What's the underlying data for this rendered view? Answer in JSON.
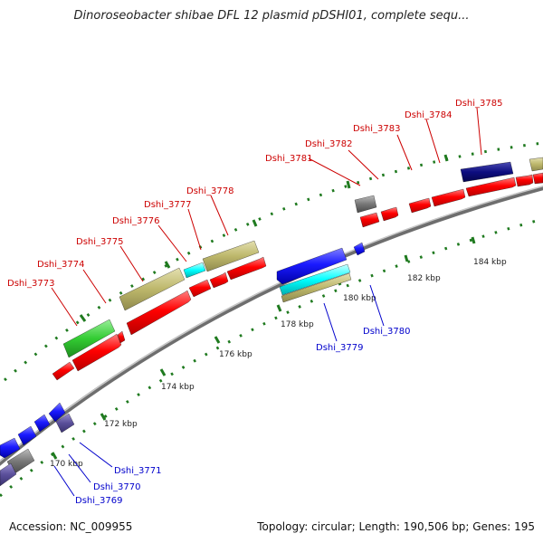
{
  "title": "Dinoroseobacter shibae DFL 12 plasmid pDSHI01, complete sequ...",
  "footer": {
    "accession_label": "Accession:",
    "accession": "NC_009955",
    "topology_label": "Topology:",
    "topology": "circular",
    "length_label": "Length:",
    "length": "190,506 bp",
    "genes_label": "Genes:",
    "genes": "195"
  },
  "colors": {
    "forward_cds": "#ff0000",
    "reverse_cds": "#1a1aff",
    "khaki": "#bdb76b",
    "green": "#33cc33",
    "cyan": "#00ffff",
    "navy": "#0d0d80",
    "gray": "#777777",
    "slate": "#5a4f9a",
    "label_forward": "#cc0000",
    "label_reverse": "#0000cc",
    "backbone": "#999999",
    "tick": "#1f7a1f"
  },
  "ruler": [
    {
      "label": "170 kbp"
    },
    {
      "label": "172 kbp"
    },
    {
      "label": "174 kbp"
    },
    {
      "label": "176 kbp"
    },
    {
      "label": "178 kbp"
    },
    {
      "label": "180 kbp"
    },
    {
      "label": "182 kbp"
    },
    {
      "label": "184 kbp"
    }
  ],
  "gene_labels": [
    {
      "name": "Dshi_3773",
      "strand": "forward"
    },
    {
      "name": "Dshi_3774",
      "strand": "forward"
    },
    {
      "name": "Dshi_3775",
      "strand": "forward"
    },
    {
      "name": "Dshi_3776",
      "strand": "forward"
    },
    {
      "name": "Dshi_3777",
      "strand": "forward"
    },
    {
      "name": "Dshi_3778",
      "strand": "forward"
    },
    {
      "name": "Dshi_3781",
      "strand": "forward"
    },
    {
      "name": "Dshi_3782",
      "strand": "forward"
    },
    {
      "name": "Dshi_3783",
      "strand": "forward"
    },
    {
      "name": "Dshi_3784",
      "strand": "forward"
    },
    {
      "name": "Dshi_3785",
      "strand": "forward"
    },
    {
      "name": "Dshi_3779",
      "strand": "reverse"
    },
    {
      "name": "Dshi_3780",
      "strand": "reverse"
    },
    {
      "name": "Dshi_3771",
      "strand": "reverse"
    },
    {
      "name": "Dshi_3770",
      "strand": "reverse"
    },
    {
      "name": "Dshi_3769",
      "strand": "reverse"
    }
  ]
}
